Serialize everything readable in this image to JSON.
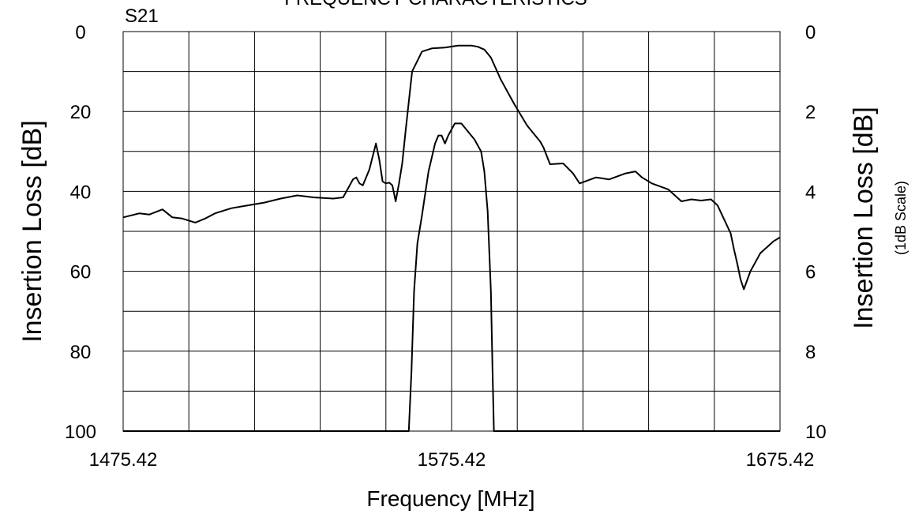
{
  "chart_data": {
    "type": "line",
    "title": "FREQUENCY CHARACTERISTICS",
    "parameter_label": "S21",
    "xlabel": "Frequency [MHz]",
    "ylabel_left": "Insertion Loss [dB]",
    "ylabel_right": "Insertion Loss [dB]",
    "ylabel_right_note": "(1dB Scale)",
    "xlim": [
      1475.42,
      1675.42
    ],
    "x_tick_labels": [
      "1475.42",
      "1575.42",
      "1675.42"
    ],
    "y_left_lim": [
      0,
      100
    ],
    "y_left_tick_labels": [
      "0",
      "20",
      "40",
      "60",
      "80",
      "100"
    ],
    "y_right_lim": [
      0,
      10
    ],
    "y_right_tick_labels": [
      "0",
      "2",
      "4",
      "6",
      "8",
      "10"
    ],
    "grid": true,
    "grid_divisions": {
      "x": 10,
      "y": 10
    },
    "series": [
      {
        "axis": "left",
        "x": [
          1475.42,
          1480.4,
          1483.4,
          1487.4,
          1490.4,
          1493.4,
          1497.4,
          1500.4,
          1503.4,
          1508.4,
          1513.4,
          1518.4,
          1523.4,
          1528.4,
          1533.4,
          1539.4,
          1542.4,
          1545.4,
          1546.4,
          1547.4,
          1548.4,
          1550.4,
          1552.4,
          1553.4,
          1554.4,
          1555.4,
          1556.4,
          1557.4,
          1558.4,
          1559.4,
          1560.4,
          1561.4,
          1563.4,
          1566.4,
          1569.4,
          1573.4,
          1577.4,
          1581.4,
          1583.4,
          1585.4,
          1587.4,
          1590.4,
          1594.4,
          1598.4,
          1602.4,
          1603.4,
          1605.4,
          1609.4,
          1612.4,
          1614.4,
          1619.4,
          1623.4,
          1628.4,
          1631.4,
          1633.4,
          1636.4,
          1641.4,
          1645.4,
          1648.4,
          1651.4,
          1654.4,
          1656.4,
          1658.4,
          1660.4,
          1661.4,
          1662.4,
          1663.4,
          1664.4,
          1666.4,
          1669.4,
          1673.4,
          1675.42
        ],
        "values": [
          46.5,
          45.5,
          45.8,
          44.5,
          46.5,
          46.8,
          47.8,
          46.8,
          45.5,
          44.2,
          43.5,
          42.8,
          41.8,
          41.0,
          41.5,
          41.8,
          41.5,
          37.0,
          36.5,
          38.0,
          38.5,
          34.5,
          28.0,
          32.0,
          37.5,
          38.0,
          37.8,
          38.5,
          42.5,
          38.0,
          33.0,
          25.0,
          10.0,
          5.0,
          4.2,
          4.0,
          3.5,
          3.5,
          3.8,
          4.5,
          6.5,
          12.0,
          18.0,
          23.5,
          27.5,
          29.0,
          33.2,
          33.0,
          35.5,
          38.0,
          36.5,
          37.0,
          35.5,
          35.0,
          36.5,
          38.0,
          39.5,
          42.5,
          42.0,
          42.3,
          42.0,
          43.5,
          47.0,
          50.5,
          54.5,
          58.0,
          62.0,
          64.5,
          60.0,
          55.5,
          52.5,
          51.5
        ]
      },
      {
        "axis": "right",
        "x": [
          1475.42,
          1483.4,
          1491.4,
          1499.4,
          1507.4,
          1515.4,
          1523.4,
          1531.4,
          1539.4,
          1547.4,
          1555.4,
          1562.4,
          1563.2,
          1564.0,
          1565.0,
          1566.4,
          1568.4,
          1570.4,
          1571.4,
          1572.4,
          1573.4,
          1574.4,
          1576.4,
          1578.4,
          1580.4,
          1582.4,
          1584.4,
          1585.4,
          1586.4,
          1587.4,
          1587.9,
          1588.3,
          1596.4,
          1606.4,
          1616.4,
          1626.4,
          1636.4,
          1646.4,
          1656.4,
          1666.4,
          1675.42
        ],
        "values": [
          10.0,
          10.0,
          10.0,
          10.0,
          10.0,
          10.0,
          10.0,
          10.0,
          10.0,
          10.0,
          10.0,
          10.0,
          8.5,
          6.5,
          5.3,
          4.6,
          3.5,
          2.8,
          2.6,
          2.6,
          2.8,
          2.6,
          2.3,
          2.3,
          2.5,
          2.7,
          3.0,
          3.5,
          4.5,
          6.5,
          8.5,
          10.0,
          10.0,
          10.0,
          10.0,
          10.0,
          10.0,
          10.0,
          10.0,
          10.0,
          10.0
        ]
      }
    ]
  }
}
